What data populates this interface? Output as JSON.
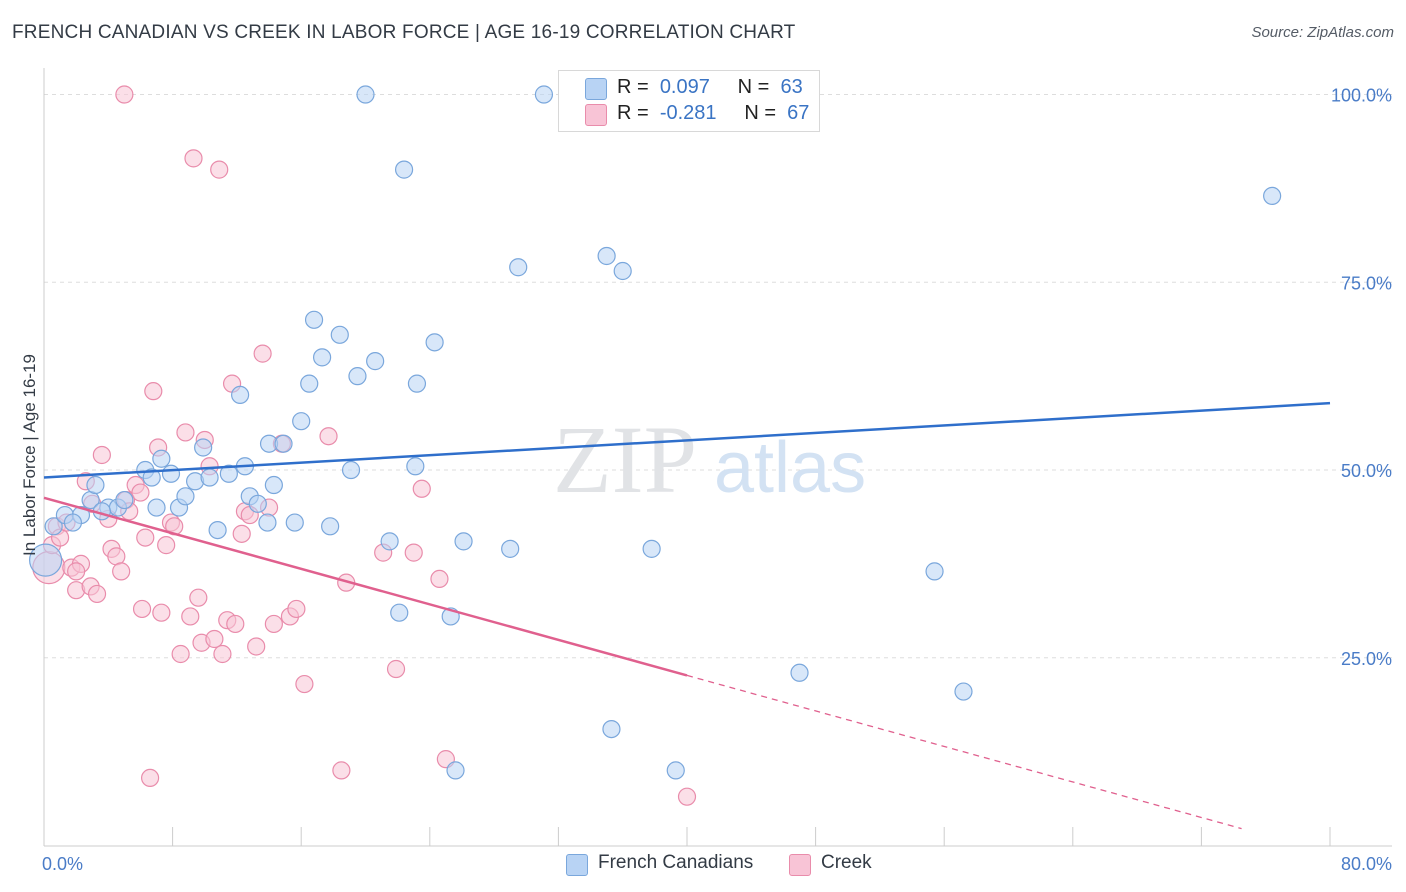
{
  "header": {
    "title": "FRENCH CANADIAN VS CREEK IN LABOR FORCE | AGE 16-19 CORRELATION CHART",
    "source": "Source: ZipAtlas.com"
  },
  "stats": {
    "series1": {
      "r_label": "R =",
      "r_value": "0.097",
      "n_label": "N =",
      "n_value": "63"
    },
    "series2": {
      "r_label": "R =",
      "r_value": "-0.281",
      "n_label": "N =",
      "n_value": "67"
    }
  },
  "legend": {
    "series1": "French Canadians",
    "series2": "Creek"
  },
  "watermark": {
    "zip": "ZIP",
    "atlas": "atlas"
  },
  "colors": {
    "series1_fill": "#b8d3f4",
    "series1_stroke": "#7aa7dc",
    "series1_line": "#2f6fcb",
    "series2_fill": "#f8c4d6",
    "series2_stroke": "#e98cab",
    "series2_line": "#e0608e",
    "axis_label": "#4a7cc7",
    "grid": "#dddddd"
  },
  "chart_data": {
    "type": "scatter",
    "title": "FRENCH CANADIAN VS CREEK IN LABOR FORCE | AGE 16-19 CORRELATION CHART",
    "xlabel": "",
    "ylabel": "In Labor Force | Age 16-19",
    "xlim": [
      0,
      80
    ],
    "ylim": [
      0,
      102
    ],
    "x_tick_labels": [
      "0.0%",
      "80.0%"
    ],
    "y_ticks": [
      25,
      50,
      75,
      100
    ],
    "y_tick_labels": [
      "25.0%",
      "50.0%",
      "75.0%",
      "100.0%"
    ],
    "grid": true,
    "legend_position": "bottom-center",
    "series": [
      {
        "name": "French Canadians",
        "r": 0.097,
        "n": 63,
        "trend": {
          "x": [
            0,
            80
          ],
          "y": [
            49.0,
            58.9
          ],
          "dashed_from": null
        },
        "points": [
          [
            0.1,
            38.0
          ],
          [
            0.6,
            42.5
          ],
          [
            1.3,
            44.0
          ],
          [
            2.3,
            44.0
          ],
          [
            2.9,
            46.0
          ],
          [
            3.2,
            48.0
          ],
          [
            4.0,
            45.0
          ],
          [
            4.6,
            45.0
          ],
          [
            5.0,
            46.0
          ],
          [
            6.3,
            50.0
          ],
          [
            6.7,
            49.0
          ],
          [
            7.3,
            51.5
          ],
          [
            7.9,
            49.5
          ],
          [
            8.4,
            45.0
          ],
          [
            8.8,
            46.5
          ],
          [
            9.4,
            48.5
          ],
          [
            9.9,
            53.0
          ],
          [
            10.3,
            49.0
          ],
          [
            10.8,
            42.0
          ],
          [
            11.5,
            49.5
          ],
          [
            12.2,
            60.0
          ],
          [
            12.5,
            50.5
          ],
          [
            12.8,
            46.5
          ],
          [
            13.3,
            45.5
          ],
          [
            13.9,
            43.0
          ],
          [
            14.0,
            53.5
          ],
          [
            14.3,
            48.0
          ],
          [
            14.9,
            53.5
          ],
          [
            15.6,
            43.0
          ],
          [
            16.0,
            56.5
          ],
          [
            16.5,
            61.5
          ],
          [
            16.8,
            70.0
          ],
          [
            17.3,
            65.0
          ],
          [
            17.8,
            42.5
          ],
          [
            18.4,
            68.0
          ],
          [
            19.1,
            50.0
          ],
          [
            19.5,
            62.5
          ],
          [
            20.0,
            100.0
          ],
          [
            20.6,
            64.5
          ],
          [
            21.5,
            40.5
          ],
          [
            22.1,
            31.0
          ],
          [
            22.4,
            90.0
          ],
          [
            23.2,
            61.5
          ],
          [
            23.1,
            50.5
          ],
          [
            24.3,
            67.0
          ],
          [
            25.3,
            30.5
          ],
          [
            25.6,
            10.0
          ],
          [
            26.1,
            40.5
          ],
          [
            29.0,
            39.5
          ],
          [
            29.5,
            77.0
          ],
          [
            31.1,
            100.0
          ],
          [
            35.0,
            78.5
          ],
          [
            35.3,
            15.5
          ],
          [
            36.0,
            76.5
          ],
          [
            37.8,
            39.5
          ],
          [
            39.3,
            10.0
          ],
          [
            47.0,
            23.0
          ],
          [
            55.4,
            36.5
          ],
          [
            57.2,
            20.5
          ],
          [
            76.4,
            86.5
          ],
          [
            1.8,
            43.0
          ],
          [
            3.6,
            44.5
          ],
          [
            7.0,
            45.0
          ]
        ]
      },
      {
        "name": "Creek",
        "r": -0.281,
        "n": 67,
        "trend": {
          "x": [
            0,
            80
          ],
          "y": [
            46.3,
            -1.0
          ],
          "dashed_from": 40
        },
        "points": [
          [
            0.3,
            37.0
          ],
          [
            0.5,
            40.0
          ],
          [
            0.8,
            42.5
          ],
          [
            1.0,
            41.0
          ],
          [
            1.4,
            43.0
          ],
          [
            1.7,
            37.0
          ],
          [
            2.0,
            34.0
          ],
          [
            2.3,
            37.5
          ],
          [
            2.6,
            48.5
          ],
          [
            2.9,
            34.5
          ],
          [
            3.3,
            33.5
          ],
          [
            3.6,
            52.0
          ],
          [
            4.0,
            43.5
          ],
          [
            4.2,
            39.5
          ],
          [
            4.5,
            38.5
          ],
          [
            4.8,
            36.5
          ],
          [
            5.1,
            46.0
          ],
          [
            5.3,
            44.5
          ],
          [
            5.7,
            48.0
          ],
          [
            6.1,
            31.5
          ],
          [
            6.3,
            41.0
          ],
          [
            6.6,
            9.0
          ],
          [
            6.8,
            60.5
          ],
          [
            7.1,
            53.0
          ],
          [
            7.3,
            31.0
          ],
          [
            7.6,
            40.0
          ],
          [
            7.9,
            43.0
          ],
          [
            8.1,
            42.5
          ],
          [
            8.5,
            25.5
          ],
          [
            8.8,
            55.0
          ],
          [
            9.1,
            30.5
          ],
          [
            9.3,
            91.5
          ],
          [
            9.6,
            33.0
          ],
          [
            9.8,
            27.0
          ],
          [
            10.0,
            54.0
          ],
          [
            10.3,
            50.5
          ],
          [
            10.6,
            27.5
          ],
          [
            10.9,
            90.0
          ],
          [
            11.1,
            25.5
          ],
          [
            11.4,
            30.0
          ],
          [
            11.7,
            61.5
          ],
          [
            11.9,
            29.5
          ],
          [
            12.3,
            41.5
          ],
          [
            12.5,
            44.5
          ],
          [
            12.8,
            44.0
          ],
          [
            13.2,
            26.5
          ],
          [
            13.6,
            65.5
          ],
          [
            14.0,
            45.0
          ],
          [
            14.3,
            29.5
          ],
          [
            14.8,
            53.5
          ],
          [
            15.3,
            30.5
          ],
          [
            15.7,
            31.5
          ],
          [
            16.2,
            21.5
          ],
          [
            17.7,
            54.5
          ],
          [
            18.5,
            10.0
          ],
          [
            18.8,
            35.0
          ],
          [
            21.1,
            39.0
          ],
          [
            21.9,
            23.5
          ],
          [
            23.0,
            39.0
          ],
          [
            23.5,
            47.5
          ],
          [
            24.6,
            35.5
          ],
          [
            25.0,
            11.5
          ],
          [
            40.0,
            6.5
          ],
          [
            5.0,
            100.0
          ],
          [
            2.0,
            36.5
          ],
          [
            3.0,
            45.5
          ],
          [
            6.0,
            47.0
          ]
        ]
      }
    ]
  }
}
